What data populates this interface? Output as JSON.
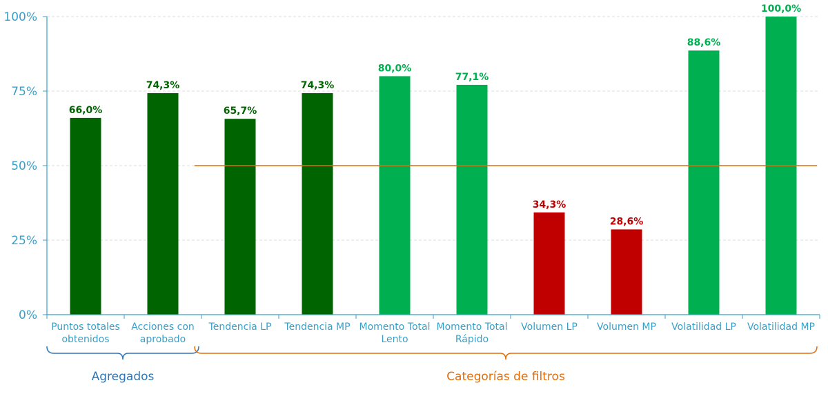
{
  "chart_data": {
    "type": "bar",
    "title": "",
    "xlabel": "",
    "ylabel": "",
    "ylim": [
      0,
      100
    ],
    "y_ticks": [
      "0%",
      "25%",
      "50%",
      "75%",
      "100%"
    ],
    "y_tick_values": [
      0,
      25,
      50,
      75,
      100
    ],
    "grid": "horizontal-dashed",
    "categories": [
      "Puntos totales obtenidos",
      "Acciones con aprobado",
      "Tendencia LP",
      "Tendencia MP",
      "Momento Total Lento",
      "Momento Total Rápido",
      "Volumen LP",
      "Volumen MP",
      "Volatilidad LP",
      "Volatilidad MP"
    ],
    "category_lines": [
      [
        "Puntos totales",
        "obtenidos"
      ],
      [
        "Acciones con",
        "aprobado"
      ],
      [
        "Tendencia LP"
      ],
      [
        "Tendencia MP"
      ],
      [
        "Momento Total",
        "Lento"
      ],
      [
        "Momento Total",
        "Rápido"
      ],
      [
        "Volumen LP"
      ],
      [
        "Volumen MP"
      ],
      [
        "Volatilidad LP"
      ],
      [
        "Volatilidad MP"
      ]
    ],
    "values": [
      66.0,
      74.3,
      65.7,
      74.3,
      80.0,
      77.1,
      34.3,
      28.6,
      88.6,
      100.0
    ],
    "value_labels": [
      "66,0%",
      "74,3%",
      "65,7%",
      "74,3%",
      "80,0%",
      "77,1%",
      "34,3%",
      "28,6%",
      "88,6%",
      "100,0%"
    ],
    "bar_colors": [
      "#006400",
      "#006400",
      "#006400",
      "#006400",
      "#00b050",
      "#00b050",
      "#c00000",
      "#c00000",
      "#00b050",
      "#00b050"
    ],
    "reference_line": {
      "value": 50,
      "color": "#e36c09",
      "from_category": 2
    },
    "groups": [
      {
        "label": "Agregados",
        "from": 0,
        "to": 1,
        "color": "#2e75b6"
      },
      {
        "label": "Categorías de filtros",
        "from": 2,
        "to": 9,
        "color": "#e36c09"
      }
    ]
  }
}
